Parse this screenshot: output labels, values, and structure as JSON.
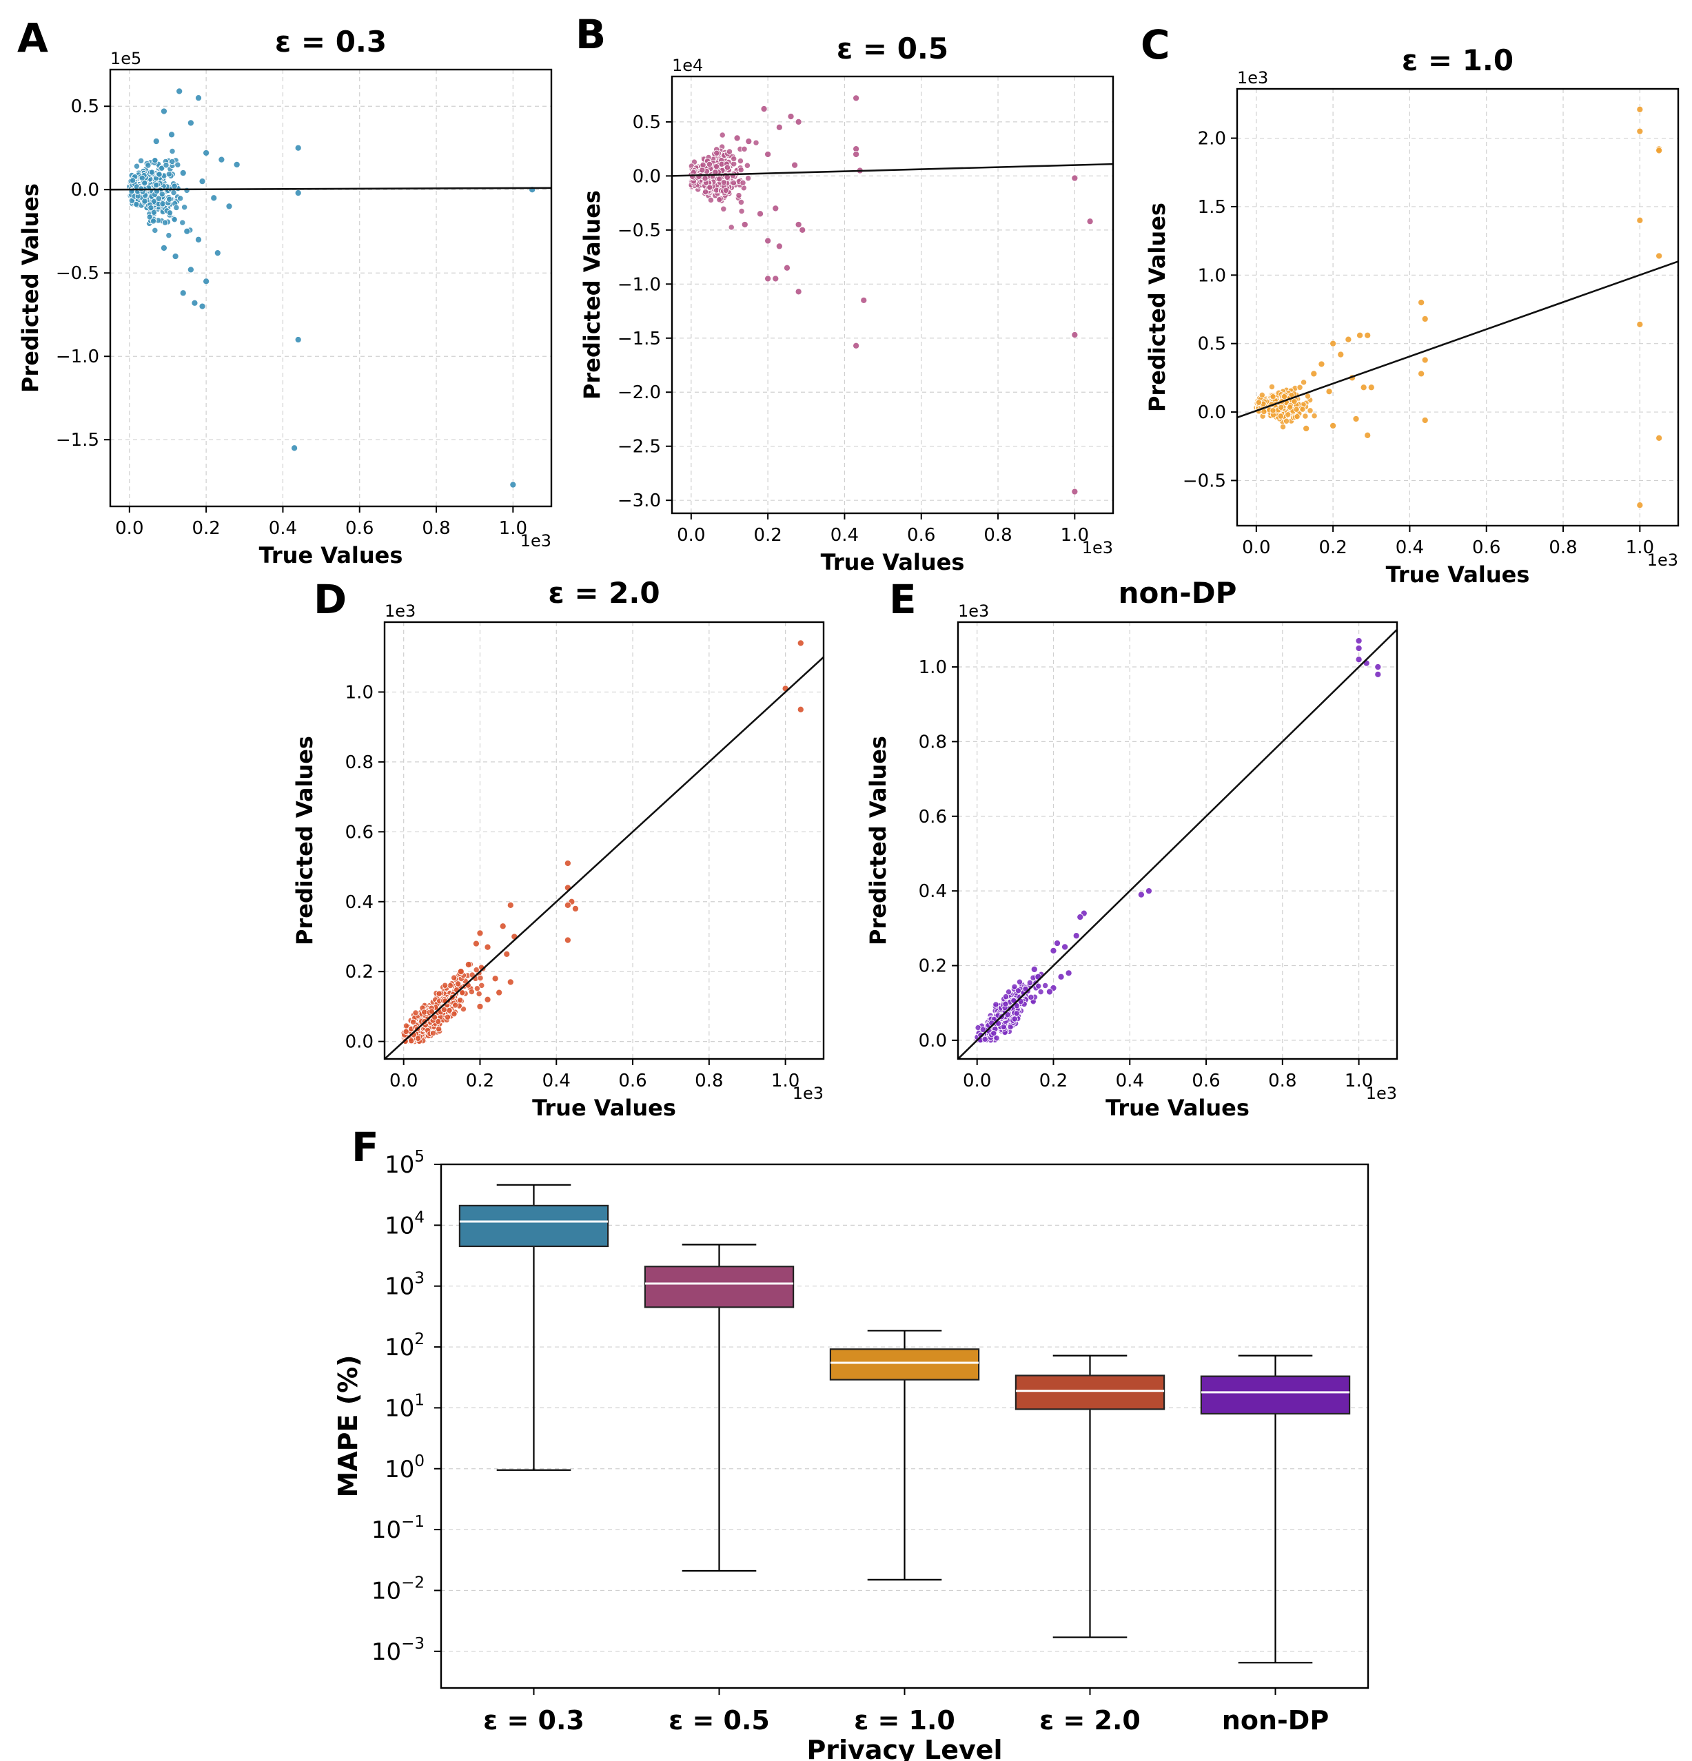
{
  "panels": [
    {
      "id": "A",
      "letter": "A",
      "title": "ε = 0.3",
      "xlabel": "True Values",
      "ylabel": "Predicted Values",
      "x_offset_label": "1e3",
      "y_offset_label": "1e5",
      "color": "#3a8fb7",
      "xlim": [
        -0.05,
        1.1
      ],
      "ylim": [
        -1.9,
        0.72
      ],
      "xticks": [
        0.0,
        0.2,
        0.4,
        0.6,
        0.8,
        1.0
      ],
      "xtick_labels": [
        "0.0",
        "0.2",
        "0.4",
        "0.6",
        "0.8",
        "1.0"
      ],
      "yticks": [
        0.5,
        0.0,
        -0.5,
        -1.0,
        -1.5
      ],
      "ytick_labels": [
        "0.5",
        "0.0",
        "−0.5",
        "−1.0",
        "−1.5"
      ],
      "fit_line": {
        "x": [
          -0.05,
          1.1
        ],
        "y": [
          0.0,
          0.01
        ]
      },
      "cluster": {
        "x_center": 0.05,
        "x_spread": 0.045,
        "y_center": 0.0,
        "y_spread": 0.1,
        "count": 380
      },
      "points": [
        [
          0.13,
          0.59
        ],
        [
          0.18,
          0.55
        ],
        [
          0.09,
          0.47
        ],
        [
          0.16,
          0.4
        ],
        [
          0.11,
          0.33
        ],
        [
          0.07,
          0.29
        ],
        [
          0.2,
          0.22
        ],
        [
          0.24,
          0.18
        ],
        [
          0.28,
          0.15
        ],
        [
          0.14,
          0.1
        ],
        [
          0.19,
          0.05
        ],
        [
          0.22,
          -0.05
        ],
        [
          0.26,
          -0.1
        ],
        [
          0.15,
          -0.25
        ],
        [
          0.18,
          -0.3
        ],
        [
          0.12,
          -0.4
        ],
        [
          0.16,
          -0.48
        ],
        [
          0.2,
          -0.55
        ],
        [
          0.14,
          -0.62
        ],
        [
          0.17,
          -0.68
        ],
        [
          0.19,
          -0.7
        ],
        [
          0.09,
          -0.35
        ],
        [
          0.23,
          -0.38
        ],
        [
          0.44,
          0.25
        ],
        [
          0.44,
          -0.02
        ],
        [
          0.44,
          -0.9
        ],
        [
          0.43,
          -1.55
        ],
        [
          1.0,
          -1.77
        ],
        [
          1.05,
          0.0
        ]
      ]
    },
    {
      "id": "B",
      "letter": "B",
      "title": "ε = 0.5",
      "xlabel": "True Values",
      "ylabel": "Predicted Values",
      "x_offset_label": "1e3",
      "y_offset_label": "1e4",
      "color": "#b5578a",
      "xlim": [
        -0.05,
        1.1
      ],
      "ylim": [
        -3.12,
        0.92
      ],
      "xticks": [
        0.0,
        0.2,
        0.4,
        0.6,
        0.8,
        1.0
      ],
      "xtick_labels": [
        "0.0",
        "0.2",
        "0.4",
        "0.6",
        "0.8",
        "1.0"
      ],
      "yticks": [
        0.5,
        0.0,
        -0.5,
        -1.0,
        -1.5,
        -2.0,
        -2.5,
        -3.0
      ],
      "ytick_labels": [
        "0.5",
        "0.0",
        "−0.5",
        "−1.0",
        "−1.5",
        "−2.0",
        "−2.5",
        "−3.0"
      ],
      "fit_line": {
        "x": [
          -0.05,
          1.1
        ],
        "y": [
          0.0,
          0.11
        ]
      },
      "cluster": {
        "x_center": 0.06,
        "x_spread": 0.045,
        "y_center": 0.0,
        "y_spread": 0.13,
        "count": 380
      },
      "points": [
        [
          0.19,
          0.62
        ],
        [
          0.26,
          0.55
        ],
        [
          0.28,
          0.5
        ],
        [
          0.23,
          0.45
        ],
        [
          0.15,
          0.32
        ],
        [
          0.2,
          0.2
        ],
        [
          0.27,
          0.1
        ],
        [
          0.12,
          0.35
        ],
        [
          0.22,
          -0.3
        ],
        [
          0.28,
          -0.45
        ],
        [
          0.29,
          -0.5
        ],
        [
          0.18,
          -0.35
        ],
        [
          0.14,
          -0.45
        ],
        [
          0.2,
          -0.6
        ],
        [
          0.23,
          -0.65
        ],
        [
          0.25,
          -0.85
        ],
        [
          0.2,
          -0.95
        ],
        [
          0.22,
          -0.95
        ],
        [
          0.28,
          -1.07
        ],
        [
          0.43,
          0.72
        ],
        [
          0.43,
          0.25
        ],
        [
          0.43,
          0.2
        ],
        [
          0.44,
          0.05
        ],
        [
          0.45,
          -1.15
        ],
        [
          0.43,
          -1.57
        ],
        [
          1.0,
          -0.02
        ],
        [
          1.04,
          -0.42
        ],
        [
          1.0,
          -1.47
        ],
        [
          1.0,
          -2.92
        ]
      ]
    },
    {
      "id": "C",
      "letter": "C",
      "title": "ε = 1.0",
      "xlabel": "True Values",
      "ylabel": "Predicted Values",
      "x_offset_label": "1e3",
      "y_offset_label": "1e3",
      "color": "#f0a030",
      "xlim": [
        -0.05,
        1.1
      ],
      "ylim": [
        -0.83,
        2.36
      ],
      "xticks": [
        0.0,
        0.2,
        0.4,
        0.6,
        0.8,
        1.0
      ],
      "xtick_labels": [
        "0.0",
        "0.2",
        "0.4",
        "0.6",
        "0.8",
        "1.0"
      ],
      "yticks": [
        2.0,
        1.5,
        1.0,
        0.5,
        0.0,
        -0.5
      ],
      "ytick_labels": [
        "2.0",
        "1.5",
        "1.0",
        "0.5",
        "0.0",
        "−0.5"
      ],
      "fit_line": {
        "x": [
          -0.05,
          1.1
        ],
        "y": [
          -0.04,
          1.1
        ]
      },
      "cluster": {
        "x_center": 0.06,
        "x_spread": 0.045,
        "y_center": 0.05,
        "y_spread": 0.06,
        "count": 380
      },
      "points": [
        [
          0.24,
          0.53
        ],
        [
          0.27,
          0.56
        ],
        [
          0.29,
          0.56
        ],
        [
          0.2,
          0.5
        ],
        [
          0.22,
          0.42
        ],
        [
          0.17,
          0.35
        ],
        [
          0.25,
          0.25
        ],
        [
          0.28,
          0.18
        ],
        [
          0.3,
          0.18
        ],
        [
          0.15,
          0.28
        ],
        [
          0.19,
          0.15
        ],
        [
          0.26,
          -0.05
        ],
        [
          0.29,
          -0.17
        ],
        [
          0.2,
          -0.1
        ],
        [
          0.13,
          -0.12
        ],
        [
          0.43,
          0.8
        ],
        [
          0.44,
          0.68
        ],
        [
          0.43,
          0.28
        ],
        [
          0.44,
          0.38
        ],
        [
          0.44,
          -0.06
        ],
        [
          1.0,
          2.21
        ],
        [
          1.0,
          2.05
        ],
        [
          1.05,
          1.92
        ],
        [
          1.05,
          1.91
        ],
        [
          1.0,
          1.4
        ],
        [
          1.05,
          1.14
        ],
        [
          1.0,
          0.64
        ],
        [
          1.05,
          -0.19
        ],
        [
          1.0,
          -0.68
        ]
      ]
    },
    {
      "id": "D",
      "letter": "D",
      "title": "ε = 2.0",
      "xlabel": "True Values",
      "ylabel": "Predicted Values",
      "x_offset_label": "1e3",
      "y_offset_label": "1e3",
      "color": "#d9542f",
      "xlim": [
        -0.05,
        1.1
      ],
      "ylim": [
        -0.05,
        1.2
      ],
      "xticks": [
        0.0,
        0.2,
        0.4,
        0.6,
        0.8,
        1.0
      ],
      "xtick_labels": [
        "0.0",
        "0.2",
        "0.4",
        "0.6",
        "0.8",
        "1.0"
      ],
      "yticks": [
        1.0,
        0.8,
        0.6,
        0.4,
        0.2,
        0.0
      ],
      "ytick_labels": [
        "1.0",
        "0.8",
        "0.6",
        "0.4",
        "0.2",
        "0.0"
      ],
      "fit_line": {
        "x": [
          -0.05,
          1.1
        ],
        "y": [
          -0.05,
          1.1
        ]
      },
      "cluster": {
        "x_center": 0.08,
        "x_spread": 0.06,
        "y_center": "diagonal",
        "y_spread": 0.025,
        "count": 420
      },
      "points": [
        [
          0.2,
          0.31
        ],
        [
          0.22,
          0.27
        ],
        [
          0.26,
          0.33
        ],
        [
          0.28,
          0.39
        ],
        [
          0.29,
          0.3
        ],
        [
          0.27,
          0.25
        ],
        [
          0.19,
          0.28
        ],
        [
          0.15,
          0.2
        ],
        [
          0.17,
          0.22
        ],
        [
          0.24,
          0.18
        ],
        [
          0.28,
          0.17
        ],
        [
          0.22,
          0.12
        ],
        [
          0.2,
          0.1
        ],
        [
          0.25,
          0.14
        ],
        [
          0.43,
          0.51
        ],
        [
          0.43,
          0.44
        ],
        [
          0.44,
          0.4
        ],
        [
          0.45,
          0.38
        ],
        [
          0.43,
          0.39
        ],
        [
          0.43,
          0.29
        ],
        [
          1.04,
          1.14
        ],
        [
          1.0,
          1.01
        ],
        [
          1.04,
          0.95
        ]
      ]
    },
    {
      "id": "E",
      "letter": "E",
      "title": "non-DP",
      "xlabel": "True Values",
      "ylabel": "Predicted Values",
      "x_offset_label": "1e3",
      "y_offset_label": "1e3",
      "color": "#7b2bc0",
      "xlim": [
        -0.05,
        1.1
      ],
      "ylim": [
        -0.05,
        1.12
      ],
      "xticks": [
        0.0,
        0.2,
        0.4,
        0.6,
        0.8,
        1.0
      ],
      "xtick_labels": [
        "0.0",
        "0.2",
        "0.4",
        "0.6",
        "0.8",
        "1.0"
      ],
      "yticks": [
        1.0,
        0.8,
        0.6,
        0.4,
        0.2,
        0.0
      ],
      "ytick_labels": [
        "1.0",
        "0.8",
        "0.6",
        "0.4",
        "0.2",
        "0.0"
      ],
      "fit_line": {
        "x": [
          -0.05,
          1.1
        ],
        "y": [
          -0.05,
          1.1
        ]
      },
      "cluster": {
        "x_center": 0.07,
        "x_spread": 0.05,
        "y_center": "diagonal",
        "y_spread": 0.02,
        "count": 380
      },
      "points": [
        [
          0.21,
          0.26
        ],
        [
          0.2,
          0.24
        ],
        [
          0.23,
          0.25
        ],
        [
          0.26,
          0.28
        ],
        [
          0.28,
          0.34
        ],
        [
          0.27,
          0.33
        ],
        [
          0.24,
          0.18
        ],
        [
          0.22,
          0.17
        ],
        [
          0.2,
          0.14
        ],
        [
          0.19,
          0.13
        ],
        [
          0.15,
          0.19
        ],
        [
          0.16,
          0.17
        ],
        [
          0.43,
          0.39
        ],
        [
          0.45,
          0.4
        ],
        [
          1.0,
          1.07
        ],
        [
          1.0,
          1.05
        ],
        [
          1.0,
          1.02
        ],
        [
          1.05,
          1.0
        ],
        [
          1.05,
          0.98
        ],
        [
          1.02,
          1.01
        ]
      ]
    }
  ],
  "box_panel": {
    "letter": "F",
    "xlabel": "Privacy Level",
    "ylabel": "MAPE (%)",
    "y_scale": "log",
    "ylim": [
      0.00025,
      100000
    ],
    "ytick_exponents": [
      "5",
      "4",
      "3",
      "2",
      "1",
      "0",
      "−1",
      "−2",
      "−3"
    ],
    "ytick_values": [
      100000,
      10000,
      1000,
      100,
      10,
      1,
      0.1,
      0.01,
      0.001
    ],
    "ytick_base": "10",
    "categories": [
      "ε = 0.3",
      "ε = 0.5",
      "ε = 1.0",
      "ε = 2.0",
      "non-DP"
    ],
    "boxes": [
      {
        "category": "ε = 0.3",
        "color": "#3a7fa0",
        "whisker_low": 0.95,
        "q1": 4500,
        "median": 11500,
        "q3": 21000,
        "whisker_high": 46000
      },
      {
        "category": "ε = 0.5",
        "color": "#9a4672",
        "whisker_low": 0.021,
        "q1": 450,
        "median": 1100,
        "q3": 2100,
        "whisker_high": 4800
      },
      {
        "category": "ε = 1.0",
        "color": "#d68d22",
        "whisker_low": 0.015,
        "q1": 29,
        "median": 55,
        "q3": 92,
        "whisker_high": 185
      },
      {
        "category": "ε = 2.0",
        "color": "#b64b30",
        "whisker_low": 0.0017,
        "q1": 9.5,
        "median": 19,
        "q3": 34,
        "whisker_high": 72
      },
      {
        "category": "non-DP",
        "color": "#6d21a8",
        "whisker_low": 0.00065,
        "q1": 8,
        "median": 18,
        "q3": 33,
        "whisker_high": 72
      }
    ]
  }
}
